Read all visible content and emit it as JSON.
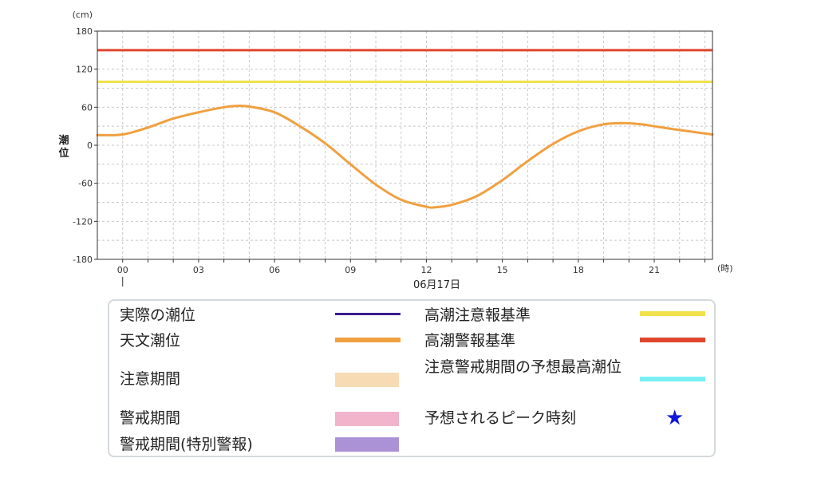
{
  "chart_data": {
    "type": "line",
    "y_unit": "(cm)",
    "x_unit": "(時)",
    "ylabel": "潮位",
    "date_label": "06月17日",
    "ylim": [
      -180,
      180
    ],
    "yticks": [
      180,
      120,
      60,
      0,
      -60,
      -120,
      -180
    ],
    "xlim": [
      -1,
      23.3
    ],
    "xticks": [
      0,
      3,
      6,
      9,
      12,
      15,
      18,
      21
    ],
    "xtick_labels": [
      "00",
      "03",
      "06",
      "09",
      "12",
      "15",
      "18",
      "21"
    ],
    "grid": true,
    "thresholds": [
      {
        "name": "高潮警報基準",
        "value": 150,
        "color": "#e0462c"
      },
      {
        "name": "高潮注意報基準",
        "value": 100,
        "color": "#f2e14a"
      }
    ],
    "series": [
      {
        "name": "天文潮位",
        "color": "#f0a040",
        "x": [
          -1,
          0,
          1,
          2,
          3,
          4,
          4.5,
          5,
          6,
          7,
          8,
          9,
          10,
          11,
          12,
          12.3,
          13,
          14,
          15,
          16,
          17,
          18,
          19,
          19.8,
          20.5,
          21,
          22,
          23.3
        ],
        "y": [
          16,
          17,
          28,
          42,
          52,
          60,
          62,
          61,
          52,
          30,
          3,
          -30,
          -62,
          -86,
          -97,
          -98,
          -94,
          -80,
          -55,
          -25,
          2,
          22,
          33,
          35,
          33,
          30,
          24,
          17
        ]
      }
    ]
  },
  "legend": {
    "items": [
      {
        "label": "実際の潮位",
        "kind": "line",
        "color": "#3b1d8e"
      },
      {
        "label": "天文潮位",
        "kind": "line",
        "color": "#f0a040"
      },
      {
        "label": "注意期間",
        "kind": "box",
        "color": "#f7dbb4"
      },
      {
        "label": "警戒期間",
        "kind": "box",
        "color": "#f1b4cb"
      },
      {
        "label": "警戒期間(特別警報)",
        "kind": "box",
        "color": "#ab92d7"
      },
      {
        "label": "高潮注意報基準",
        "kind": "line",
        "color": "#f2e14a"
      },
      {
        "label": "高潮警報基準",
        "kind": "line",
        "color": "#e0462c"
      },
      {
        "label": "注意警戒期間の予想最高潮位",
        "kind": "line",
        "color": "#79eff2"
      },
      {
        "label": "予想されるピーク時刻",
        "kind": "star",
        "color": "#1018d8"
      }
    ]
  }
}
